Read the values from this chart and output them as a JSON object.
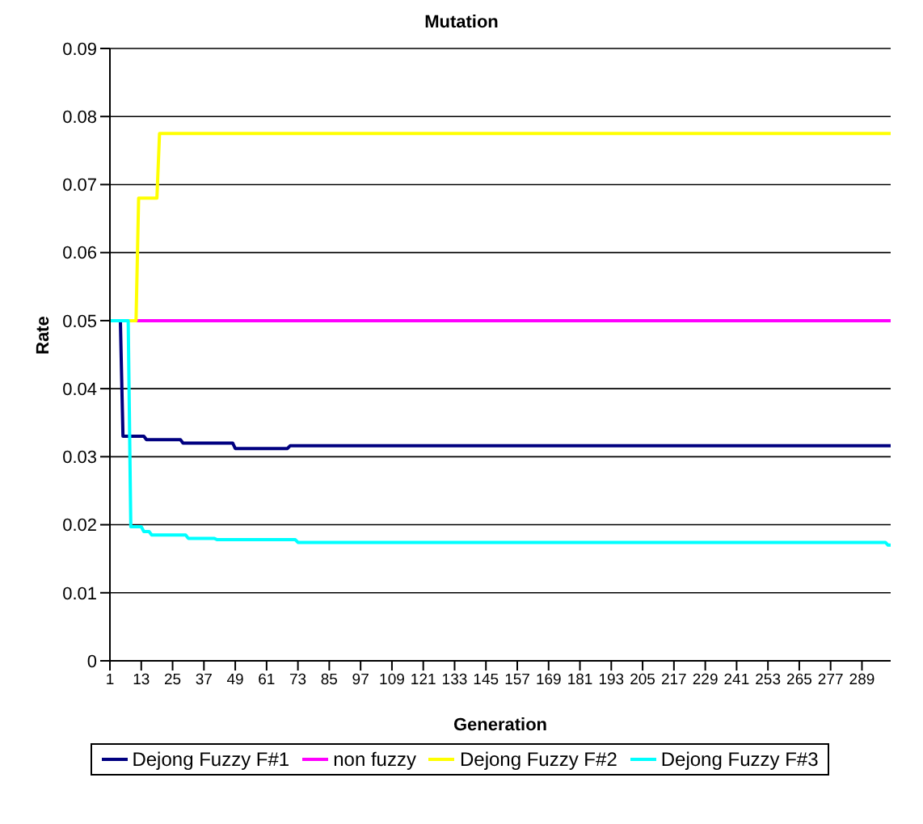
{
  "chart_data": {
    "type": "line",
    "title": "Mutation",
    "xlabel": "Generation",
    "ylabel": "Rate",
    "xlim": [
      1,
      300
    ],
    "xticks": [
      1,
      13,
      25,
      37,
      49,
      61,
      73,
      85,
      97,
      109,
      121,
      133,
      145,
      157,
      169,
      181,
      193,
      205,
      217,
      229,
      241,
      253,
      265,
      277,
      289
    ],
    "ylim": [
      0,
      0.09
    ],
    "yticks": [
      0,
      0.01,
      0.02,
      0.03,
      0.04,
      0.05,
      0.06,
      0.07,
      0.08,
      0.09
    ],
    "grid": "y",
    "legend": "bottom",
    "marker": "none",
    "line_style": "solid",
    "series": [
      {
        "name": "Dejong Fuzzy F#1",
        "color": "#000080",
        "x": [
          1,
          5,
          6,
          14,
          15,
          28,
          29,
          48,
          49,
          69,
          70,
          300
        ],
        "values": [
          0.05,
          0.05,
          0.033,
          0.033,
          0.0325,
          0.0325,
          0.032,
          0.032,
          0.0312,
          0.0312,
          0.0316,
          0.0316
        ]
      },
      {
        "name": "non fuzzy",
        "color": "#ff00ff",
        "x": [
          1,
          300
        ],
        "values": [
          0.05,
          0.05
        ]
      },
      {
        "name": "Dejong Fuzzy F#2",
        "color": "#ffff00",
        "x": [
          1,
          11,
          12,
          19,
          20,
          300
        ],
        "values": [
          0.05,
          0.05,
          0.068,
          0.068,
          0.0775,
          0.0775
        ]
      },
      {
        "name": "Dejong Fuzzy F#3",
        "color": "#00ffff",
        "x": [
          1,
          8,
          9,
          13,
          14,
          16,
          17,
          30,
          31,
          41,
          42,
          72,
          73,
          298,
          299,
          300
        ],
        "values": [
          0.05,
          0.05,
          0.0197,
          0.0197,
          0.019,
          0.019,
          0.0185,
          0.0185,
          0.018,
          0.018,
          0.0178,
          0.0178,
          0.0174,
          0.0174,
          0.017,
          0.017
        ]
      }
    ]
  }
}
